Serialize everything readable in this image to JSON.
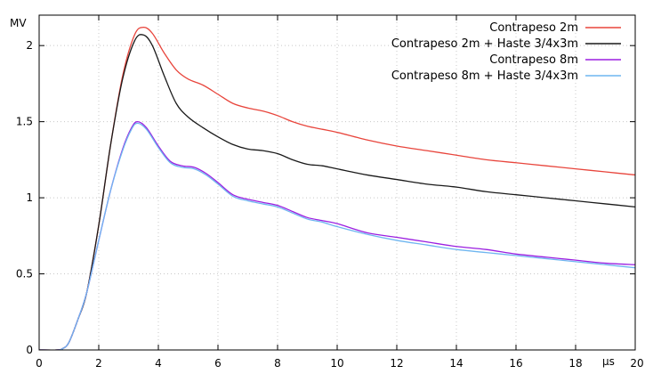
{
  "chart_data": {
    "type": "line",
    "title": "",
    "xlabel": "",
    "ylabel": "",
    "x_unit": "µs",
    "y_unit": "MV",
    "xlim": [
      0,
      20
    ],
    "ylim": [
      0,
      2.2
    ],
    "x_ticks": [
      0,
      2,
      4,
      6,
      8,
      10,
      12,
      14,
      16,
      18,
      20
    ],
    "x_tick_labels": [
      "0",
      "2",
      "4",
      "6",
      "8",
      "10",
      "12",
      "14",
      "16",
      "18",
      "20"
    ],
    "y_ticks": [
      0,
      0.5,
      1,
      1.5,
      2
    ],
    "y_tick_labels": [
      "0",
      "0.5",
      "1",
      "1.5",
      "2"
    ],
    "grid": true,
    "legend_position": "top-right",
    "series": [
      {
        "name": "Contrapeso 2m",
        "color": "#e8453c",
        "x": [
          0,
          0.6,
          0.8,
          1.0,
          1.3,
          1.6,
          2.0,
          2.4,
          2.8,
          3.2,
          3.5,
          3.8,
          4.2,
          4.6,
          5.0,
          5.5,
          6.0,
          6.5,
          7.0,
          7.5,
          8.0,
          8.5,
          9.0,
          9.5,
          10.0,
          11.0,
          12.0,
          13.0,
          14.0,
          15.0,
          16.0,
          17.0,
          18.0,
          19.0,
          20.0
        ],
        "y": [
          0,
          0,
          0.01,
          0.05,
          0.2,
          0.38,
          0.82,
          1.35,
          1.8,
          2.07,
          2.12,
          2.08,
          1.95,
          1.84,
          1.78,
          1.74,
          1.68,
          1.62,
          1.59,
          1.57,
          1.54,
          1.5,
          1.47,
          1.45,
          1.43,
          1.38,
          1.34,
          1.31,
          1.28,
          1.25,
          1.23,
          1.21,
          1.19,
          1.17,
          1.15
        ]
      },
      {
        "name": "Contrapeso 2m + Haste 3/4x3m",
        "color": "#1a1a1a",
        "x": [
          0,
          0.6,
          0.8,
          1.0,
          1.3,
          1.6,
          2.0,
          2.4,
          2.8,
          3.2,
          3.5,
          3.8,
          4.2,
          4.6,
          5.0,
          5.5,
          6.0,
          6.5,
          7.0,
          7.5,
          8.0,
          8.5,
          9.0,
          9.5,
          10.0,
          11.0,
          12.0,
          13.0,
          14.0,
          15.0,
          16.0,
          17.0,
          18.0,
          19.0,
          20.0
        ],
        "y": [
          0,
          0,
          0.01,
          0.05,
          0.2,
          0.38,
          0.82,
          1.35,
          1.78,
          2.03,
          2.07,
          2.0,
          1.8,
          1.62,
          1.53,
          1.46,
          1.4,
          1.35,
          1.32,
          1.31,
          1.29,
          1.25,
          1.22,
          1.21,
          1.19,
          1.15,
          1.12,
          1.09,
          1.07,
          1.04,
          1.02,
          1.0,
          0.98,
          0.96,
          0.94
        ]
      },
      {
        "name": "Contrapeso 8m",
        "color": "#9b1fe0",
        "x": [
          0,
          0.6,
          0.8,
          1.0,
          1.3,
          1.6,
          2.0,
          2.4,
          2.8,
          3.1,
          3.3,
          3.6,
          4.0,
          4.4,
          4.8,
          5.2,
          5.6,
          6.0,
          6.5,
          7.0,
          7.5,
          8.0,
          8.5,
          9.0,
          9.5,
          10.0,
          11.0,
          12.0,
          13.0,
          14.0,
          15.0,
          16.0,
          17.0,
          18.0,
          19.0,
          20.0
        ],
        "y": [
          0,
          0,
          0.01,
          0.05,
          0.2,
          0.38,
          0.72,
          1.05,
          1.32,
          1.46,
          1.5,
          1.46,
          1.34,
          1.24,
          1.21,
          1.2,
          1.16,
          1.1,
          1.02,
          0.99,
          0.97,
          0.95,
          0.91,
          0.87,
          0.85,
          0.83,
          0.77,
          0.74,
          0.71,
          0.68,
          0.66,
          0.63,
          0.61,
          0.59,
          0.57,
          0.56
        ]
      },
      {
        "name": "Contrapeso 8m + Haste 3/4x3m",
        "color": "#6fb6f0",
        "x": [
          0,
          0.6,
          0.8,
          1.0,
          1.3,
          1.6,
          2.0,
          2.4,
          2.8,
          3.1,
          3.3,
          3.6,
          4.0,
          4.4,
          4.8,
          5.2,
          5.6,
          6.0,
          6.5,
          7.0,
          7.5,
          8.0,
          8.5,
          9.0,
          9.5,
          10.0,
          11.0,
          12.0,
          13.0,
          14.0,
          15.0,
          16.0,
          17.0,
          18.0,
          19.0,
          20.0
        ],
        "y": [
          0,
          0,
          0.01,
          0.05,
          0.2,
          0.38,
          0.72,
          1.05,
          1.31,
          1.45,
          1.49,
          1.45,
          1.33,
          1.23,
          1.2,
          1.19,
          1.15,
          1.09,
          1.01,
          0.98,
          0.96,
          0.94,
          0.9,
          0.86,
          0.84,
          0.81,
          0.76,
          0.72,
          0.69,
          0.66,
          0.64,
          0.62,
          0.6,
          0.58,
          0.56,
          0.54
        ]
      }
    ]
  }
}
